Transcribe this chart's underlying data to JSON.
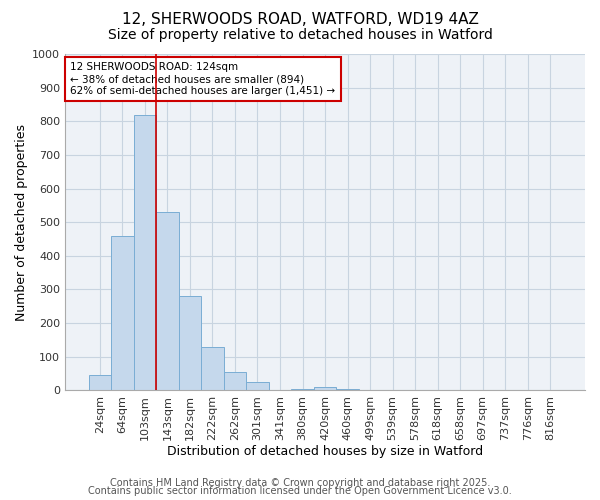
{
  "title": "12, SHERWOODS ROAD, WATFORD, WD19 4AZ",
  "subtitle": "Size of property relative to detached houses in Watford",
  "xlabel": "Distribution of detached houses by size in Watford",
  "ylabel": "Number of detached properties",
  "categories": [
    "24sqm",
    "64sqm",
    "103sqm",
    "143sqm",
    "182sqm",
    "222sqm",
    "262sqm",
    "301sqm",
    "341sqm",
    "380sqm",
    "420sqm",
    "460sqm",
    "499sqm",
    "539sqm",
    "578sqm",
    "618sqm",
    "658sqm",
    "697sqm",
    "737sqm",
    "776sqm",
    "816sqm"
  ],
  "values": [
    45,
    460,
    820,
    530,
    280,
    130,
    55,
    25,
    0,
    5,
    10,
    5,
    0,
    0,
    2,
    0,
    0,
    0,
    0,
    0,
    0
  ],
  "bar_color": "#c5d8ec",
  "bar_edge_color": "#7aadd4",
  "vline_color": "#cc0000",
  "vline_x": 2.5,
  "ylim": [
    0,
    1000
  ],
  "yticks": [
    0,
    100,
    200,
    300,
    400,
    500,
    600,
    700,
    800,
    900,
    1000
  ],
  "annotation_text": "12 SHERWOODS ROAD: 124sqm\n← 38% of detached houses are smaller (894)\n62% of semi-detached houses are larger (1,451) →",
  "annotation_box_color": "#cc0000",
  "footer_line1": "Contains HM Land Registry data © Crown copyright and database right 2025.",
  "footer_line2": "Contains public sector information licensed under the Open Government Licence v3.0.",
  "bg_color": "#eef2f7",
  "grid_color": "#c8d4e0",
  "title_fontsize": 11,
  "subtitle_fontsize": 10,
  "xlabel_fontsize": 9,
  "ylabel_fontsize": 9,
  "tick_fontsize": 8,
  "footer_fontsize": 7
}
